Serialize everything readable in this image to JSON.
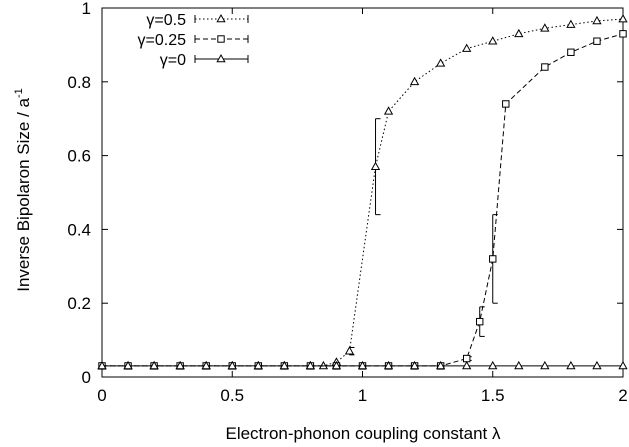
{
  "chart_data": {
    "type": "line",
    "xlabel": "Electron-phonon coupling constant λ",
    "ylabel": "Inverse Bipolaron Size / a",
    "ylabel_sup": "-1",
    "xlim": [
      0,
      2
    ],
    "ylim": [
      0,
      1
    ],
    "xticks": [
      0,
      0.5,
      1,
      1.5,
      2
    ],
    "xtick_labels": [
      "0",
      "0.5",
      "1",
      "1.5",
      "2"
    ],
    "yticks": [
      0,
      0.2,
      0.4,
      0.6,
      0.8,
      1
    ],
    "ytick_labels": [
      "0",
      "0.2",
      "0.4",
      "0.6",
      "0.8",
      "1"
    ],
    "grid": false,
    "legend_position": "top-left",
    "series": [
      {
        "name": "γ=0.5",
        "line_style": "dotted",
        "marker": "triangle",
        "x": [
          0,
          0.1,
          0.2,
          0.3,
          0.4,
          0.5,
          0.6,
          0.7,
          0.8,
          0.85,
          0.9,
          0.95,
          1.05,
          1.1,
          1.2,
          1.3,
          1.4,
          1.5,
          1.6,
          1.7,
          1.8,
          1.9,
          2.0
        ],
        "y": [
          0.03,
          0.03,
          0.03,
          0.03,
          0.03,
          0.03,
          0.03,
          0.03,
          0.03,
          0.03,
          0.04,
          0.07,
          0.57,
          0.72,
          0.8,
          0.85,
          0.89,
          0.91,
          0.93,
          0.945,
          0.955,
          0.965,
          0.97
        ],
        "err": [
          0,
          0,
          0,
          0,
          0,
          0,
          0,
          0,
          0,
          0,
          0,
          0.01,
          0.13,
          0,
          0,
          0,
          0,
          0,
          0,
          0,
          0,
          0,
          0
        ]
      },
      {
        "name": "γ=0.25",
        "line_style": "dashed",
        "marker": "square",
        "x": [
          0,
          0.1,
          0.2,
          0.3,
          0.4,
          0.5,
          0.6,
          0.7,
          0.8,
          0.9,
          1.0,
          1.1,
          1.2,
          1.3,
          1.4,
          1.45,
          1.5,
          1.55,
          1.7,
          1.8,
          1.9,
          2.0
        ],
        "y": [
          0.03,
          0.03,
          0.03,
          0.03,
          0.03,
          0.03,
          0.03,
          0.03,
          0.03,
          0.03,
          0.03,
          0.03,
          0.03,
          0.03,
          0.05,
          0.15,
          0.32,
          0.74,
          0.84,
          0.88,
          0.91,
          0.93
        ],
        "err": [
          0,
          0,
          0,
          0,
          0,
          0,
          0,
          0,
          0,
          0,
          0,
          0,
          0,
          0,
          0.005,
          0.04,
          0.12,
          0,
          0,
          0,
          0,
          0
        ]
      },
      {
        "name": "γ=0",
        "line_style": "solid",
        "marker": "triangle",
        "x": [
          0,
          0.1,
          0.2,
          0.3,
          0.4,
          0.5,
          0.6,
          0.7,
          0.8,
          0.9,
          1.0,
          1.1,
          1.2,
          1.3,
          1.4,
          1.5,
          1.6,
          1.7,
          1.8,
          1.9,
          2.0
        ],
        "y": [
          0.03,
          0.03,
          0.03,
          0.03,
          0.03,
          0.03,
          0.03,
          0.03,
          0.03,
          0.03,
          0.03,
          0.03,
          0.03,
          0.03,
          0.03,
          0.03,
          0.03,
          0.03,
          0.03,
          0.03,
          0.03
        ],
        "err": [
          0,
          0,
          0,
          0,
          0,
          0,
          0,
          0,
          0,
          0,
          0,
          0,
          0,
          0,
          0,
          0,
          0,
          0,
          0,
          0,
          0
        ]
      }
    ]
  }
}
